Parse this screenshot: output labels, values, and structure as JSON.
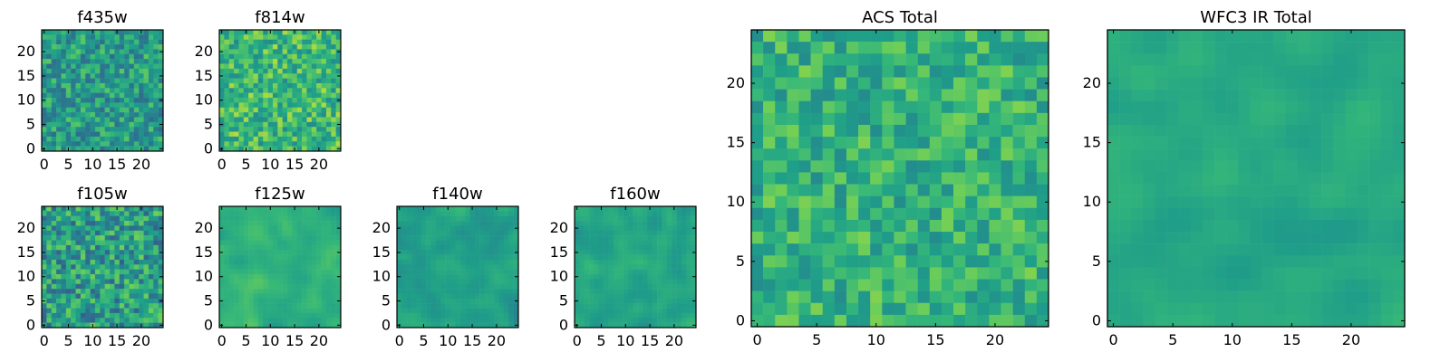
{
  "figure": {
    "colormap": "viridis",
    "colors": {
      "low": "#440154",
      "mid": "#21918c",
      "high": "#fde725",
      "frame": "#000000",
      "background": "#ffffff"
    }
  },
  "chart_data": [
    {
      "id": "f435w",
      "type": "heatmap",
      "title": "f435w",
      "grid_size": [
        25,
        25
      ],
      "xlim": [
        0,
        24
      ],
      "ylim": [
        0,
        24
      ],
      "x_ticks": [
        0,
        5,
        10,
        15,
        20
      ],
      "y_ticks": [
        0,
        5,
        10,
        15,
        20
      ],
      "value_range": [
        0,
        1
      ],
      "seed": 11,
      "mean": 0.62,
      "spread": 0.2,
      "noise_pattern": "fine"
    },
    {
      "id": "f814w",
      "type": "heatmap",
      "title": "f814w",
      "grid_size": [
        25,
        25
      ],
      "xlim": [
        0,
        24
      ],
      "ylim": [
        0,
        24
      ],
      "x_ticks": [
        0,
        5,
        10,
        15,
        20
      ],
      "y_ticks": [
        0,
        5,
        10,
        15,
        20
      ],
      "value_range": [
        0,
        1
      ],
      "seed": 23,
      "mean": 0.74,
      "spread": 0.18,
      "noise_pattern": "fine"
    },
    {
      "id": "f105w",
      "type": "heatmap",
      "title": "f105w",
      "grid_size": [
        25,
        25
      ],
      "xlim": [
        0,
        24
      ],
      "ylim": [
        0,
        24
      ],
      "x_ticks": [
        0,
        5,
        10,
        15,
        20
      ],
      "y_ticks": [
        0,
        5,
        10,
        15,
        20
      ],
      "value_range": [
        0,
        1
      ],
      "seed": 37,
      "mean": 0.62,
      "spread": 0.24,
      "noise_pattern": "fine"
    },
    {
      "id": "f125w",
      "type": "heatmap",
      "title": "f125w",
      "grid_size": [
        25,
        25
      ],
      "xlim": [
        0,
        24
      ],
      "ylim": [
        0,
        24
      ],
      "x_ticks": [
        0,
        5,
        10,
        15,
        20
      ],
      "y_ticks": [
        0,
        5,
        10,
        15,
        20
      ],
      "value_range": [
        0,
        1
      ],
      "seed": 41,
      "mean": 0.72,
      "spread": 0.2,
      "noise_pattern": "smooth"
    },
    {
      "id": "f140w",
      "type": "heatmap",
      "title": "f140w",
      "grid_size": [
        25,
        25
      ],
      "xlim": [
        0,
        24
      ],
      "ylim": [
        0,
        24
      ],
      "x_ticks": [
        0,
        5,
        10,
        15,
        20
      ],
      "y_ticks": [
        0,
        5,
        10,
        15,
        20
      ],
      "value_range": [
        0,
        1
      ],
      "seed": 53,
      "mean": 0.64,
      "spread": 0.22,
      "noise_pattern": "smooth"
    },
    {
      "id": "f160w",
      "type": "heatmap",
      "title": "f160w",
      "grid_size": [
        25,
        25
      ],
      "xlim": [
        0,
        24
      ],
      "ylim": [
        0,
        24
      ],
      "x_ticks": [
        0,
        5,
        10,
        15,
        20
      ],
      "y_ticks": [
        0,
        5,
        10,
        15,
        20
      ],
      "value_range": [
        0,
        1
      ],
      "seed": 67,
      "mean": 0.66,
      "spread": 0.22,
      "noise_pattern": "smooth"
    },
    {
      "id": "acs-total",
      "type": "heatmap",
      "title": "ACS Total",
      "grid_size": [
        25,
        25
      ],
      "xlim": [
        0,
        24
      ],
      "ylim": [
        0,
        24
      ],
      "x_ticks": [
        0,
        5,
        10,
        15,
        20
      ],
      "y_ticks": [
        0,
        5,
        10,
        15,
        20
      ],
      "value_range": [
        0,
        1
      ],
      "seed": 79,
      "mean": 0.72,
      "spread": 0.16,
      "noise_pattern": "fine"
    },
    {
      "id": "wfc3-ir-total",
      "type": "heatmap",
      "title": "WFC3 IR Total",
      "grid_size": [
        25,
        25
      ],
      "xlim": [
        0,
        24
      ],
      "ylim": [
        0,
        24
      ],
      "x_ticks": [
        0,
        5,
        10,
        15,
        20
      ],
      "y_ticks": [
        0,
        5,
        10,
        15,
        20
      ],
      "value_range": [
        0,
        1
      ],
      "seed": 97,
      "mean": 0.68,
      "spread": 0.16,
      "noise_pattern": "smooth"
    }
  ]
}
